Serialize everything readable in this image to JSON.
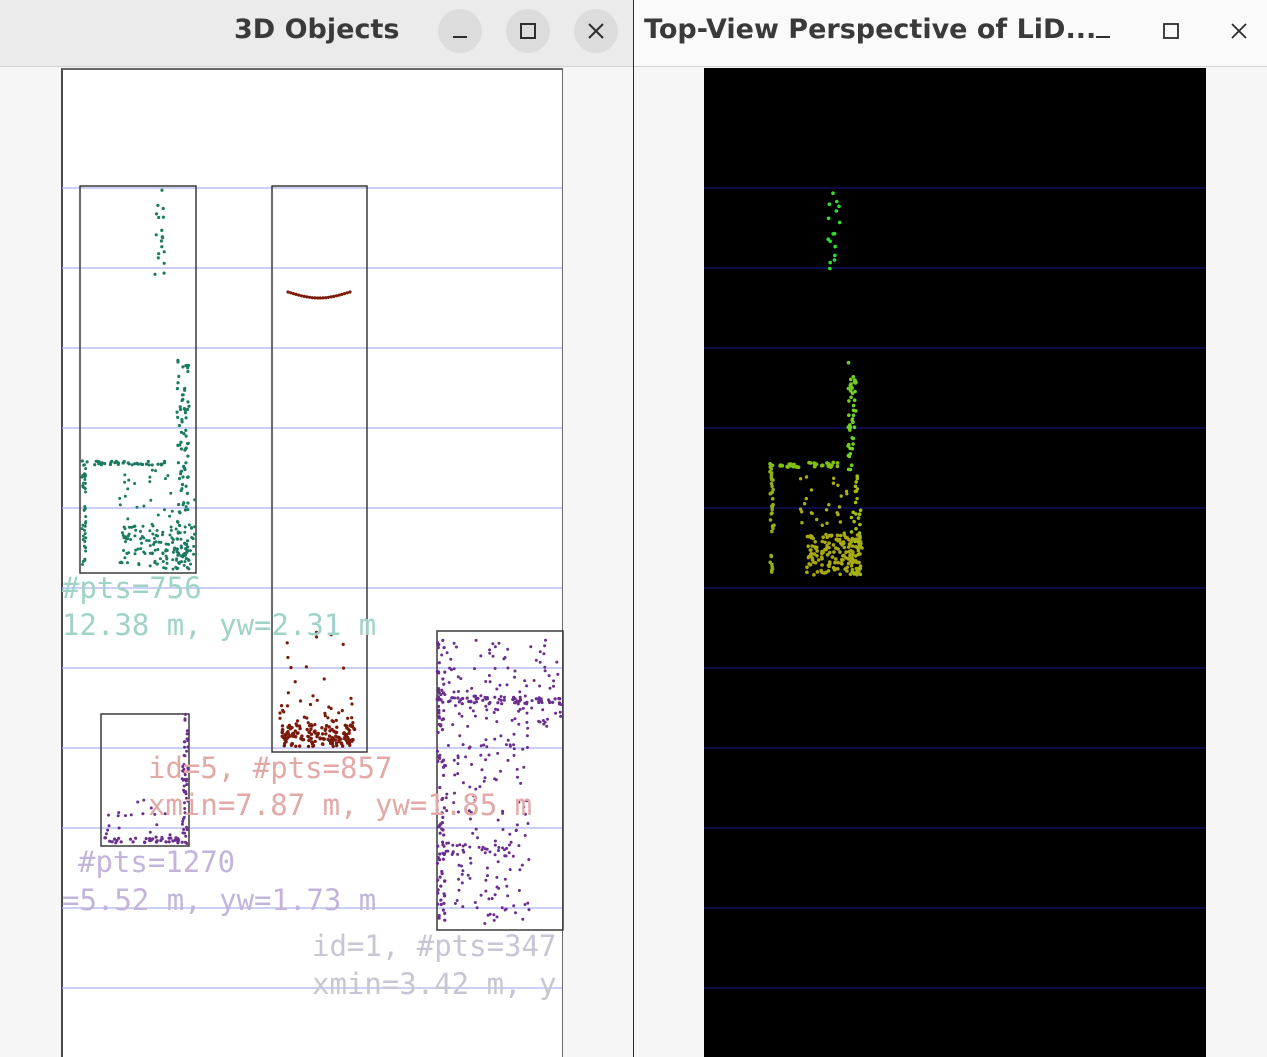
{
  "windows": [
    {
      "title": "3D Objects",
      "controls": {
        "minimize": "minimize-icon",
        "maximize": "maximize-icon",
        "close": "close-icon"
      }
    },
    {
      "title": "Top-View Perspective of LiD...",
      "controls": {
        "minimize": "minimize-icon",
        "maximize": "maximize-icon",
        "close": "close-icon"
      }
    }
  ],
  "objects_view": {
    "labels": [
      {
        "line1": "#pts=756",
        "line2": "12.38 m, yw=2.31 m",
        "color": "#9fd3c8"
      },
      {
        "line1": "id=5, #pts=857",
        "line2": "xmin=7.87 m, yw=1.85 m",
        "color": "#e2a9a6"
      },
      {
        "line1": "#pts=1270",
        "line2": "=5.52 m, yw=1.73 m",
        "color": "#c3b4dc"
      },
      {
        "line1": "id=1, #pts=347",
        "line2": "xmin=3.42 m, y",
        "color": "#c6c6d4"
      }
    ],
    "colors": {
      "teal": "#1b7a62",
      "brown": "#7a1a0a",
      "purple": "#6a2f8e",
      "gridline": "#aeb2ee"
    }
  },
  "topview_colors": {
    "background": "#000000",
    "gridline": "#14146e",
    "near": "#a8a810",
    "far": "#2ee02e"
  }
}
